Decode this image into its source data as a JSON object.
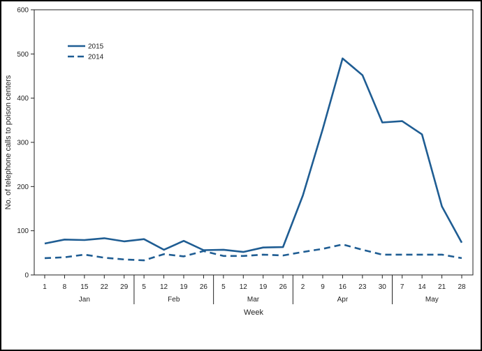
{
  "chart_data": {
    "type": "line",
    "title": "",
    "xlabel": "Week",
    "ylabel": "No. of telephone calls to poison centers",
    "ylim": [
      0,
      600
    ],
    "yticks": [
      0,
      100,
      200,
      300,
      400,
      500,
      600
    ],
    "grid": false,
    "legend_position": "top-left",
    "x": [
      "1",
      "8",
      "15",
      "22",
      "29",
      "5",
      "12",
      "19",
      "26",
      "5",
      "12",
      "19",
      "26",
      "2",
      "9",
      "16",
      "23",
      "30",
      "7",
      "14",
      "21",
      "28"
    ],
    "months": [
      {
        "label": "Jan",
        "start": 0,
        "end": 4
      },
      {
        "label": "Feb",
        "start": 5,
        "end": 8
      },
      {
        "label": "Mar",
        "start": 9,
        "end": 12
      },
      {
        "label": "Apr",
        "start": 13,
        "end": 17
      },
      {
        "label": "May",
        "start": 18,
        "end": 21
      }
    ],
    "series": [
      {
        "name": "2015",
        "style": "solid",
        "color": "#1f5d93",
        "values": [
          71,
          80,
          79,
          83,
          76,
          81,
          57,
          77,
          56,
          57,
          52,
          62,
          63,
          180,
          330,
          490,
          452,
          345,
          348,
          318,
          155,
          73
        ]
      },
      {
        "name": "2014",
        "style": "dashed",
        "color": "#1f5d93",
        "values": [
          38,
          40,
          46,
          39,
          35,
          33,
          47,
          42,
          54,
          43,
          43,
          46,
          44,
          52,
          59,
          69,
          57,
          46,
          46,
          46,
          46,
          38
        ]
      }
    ]
  }
}
